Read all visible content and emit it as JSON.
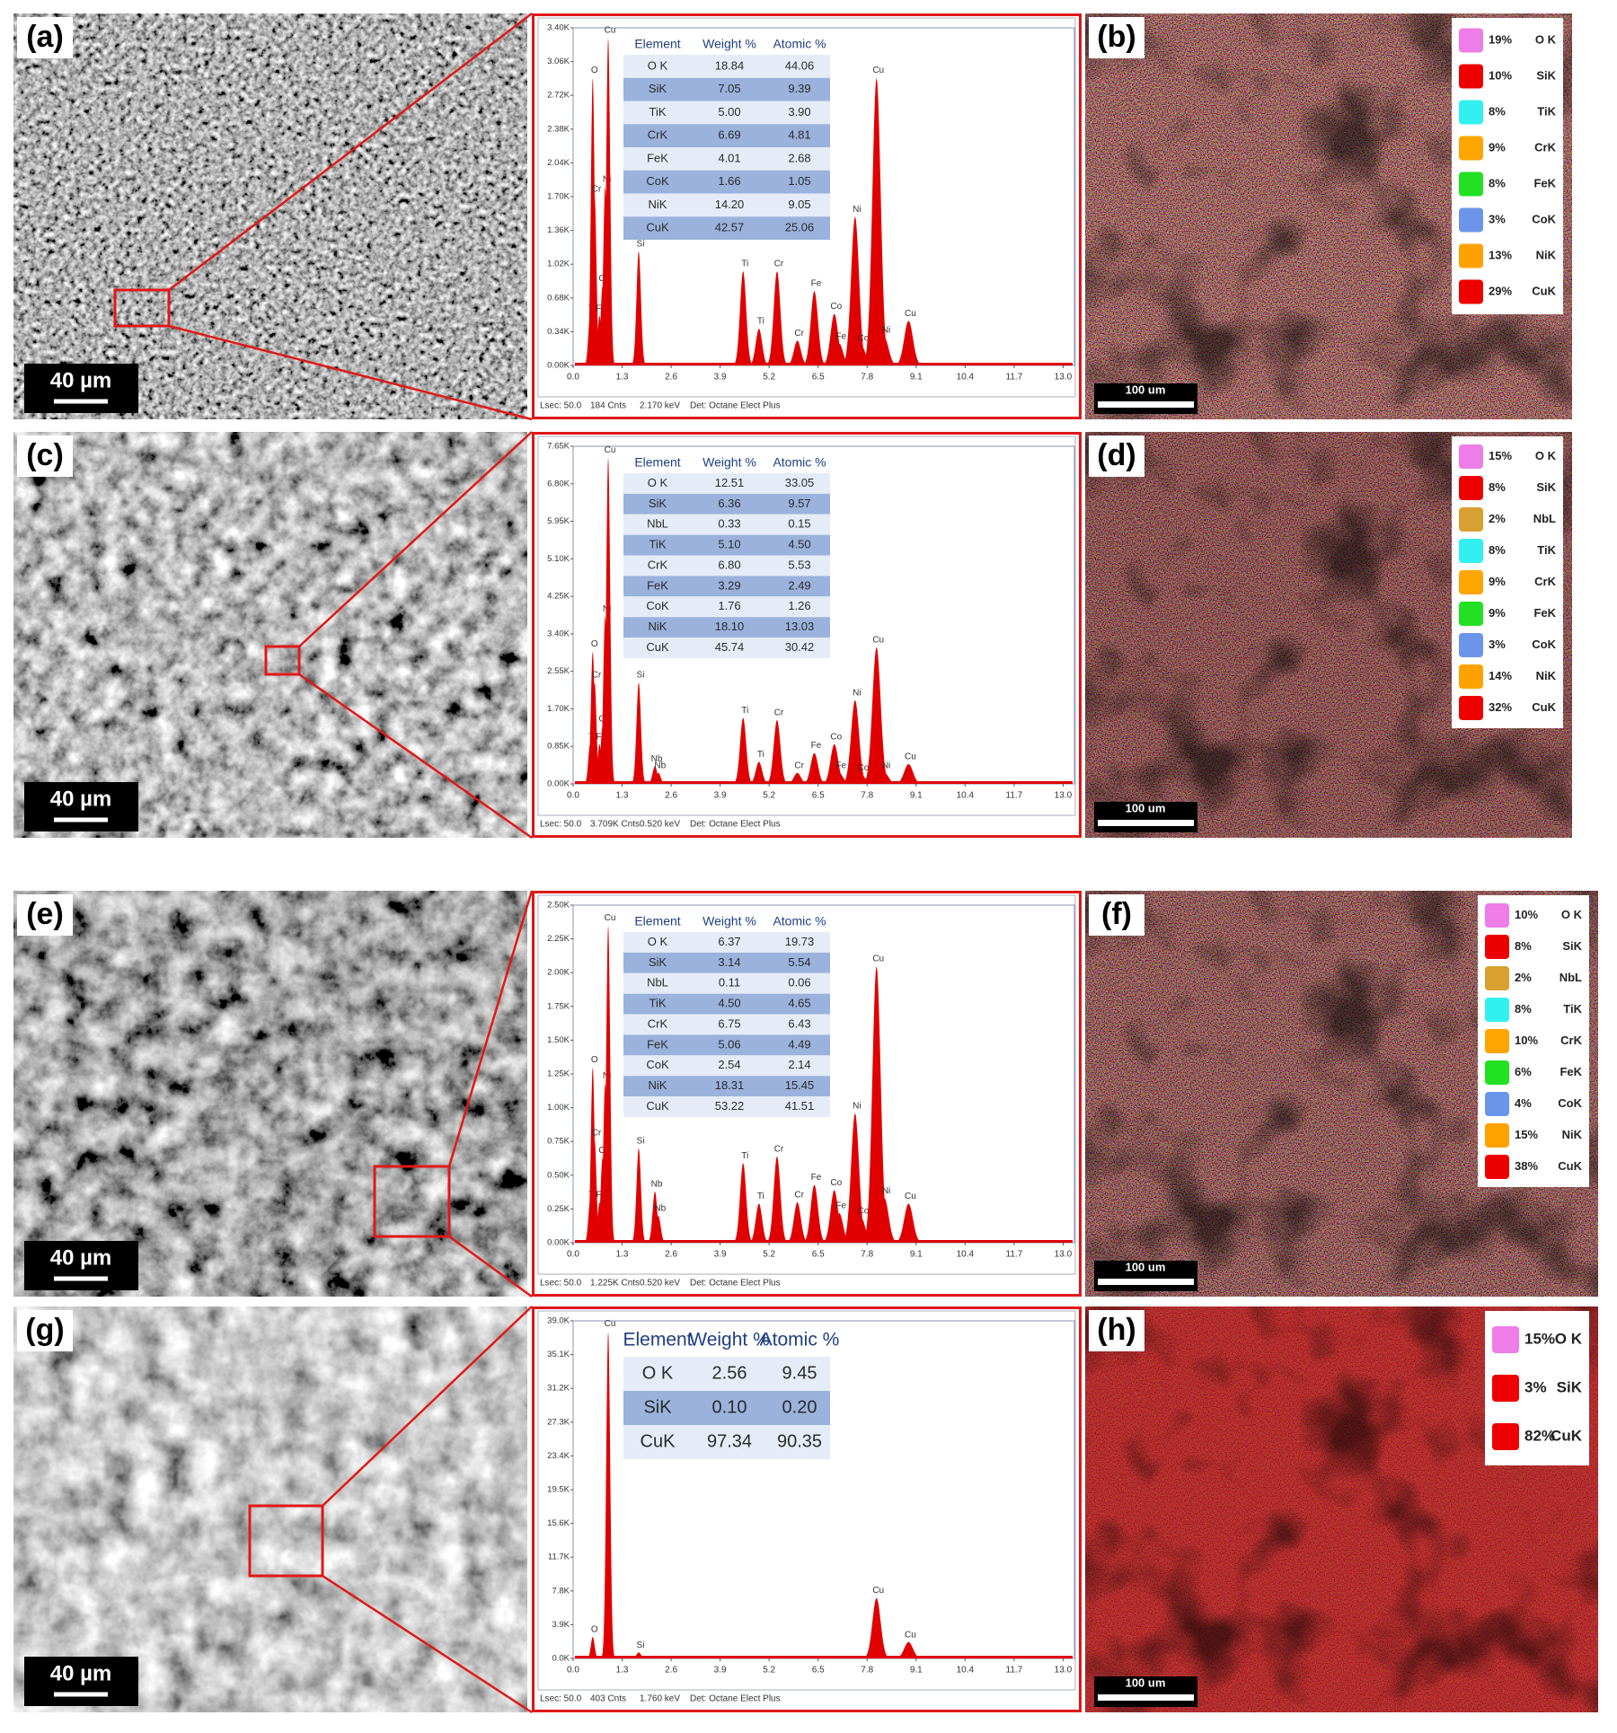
{
  "rows": [
    {
      "sem": {
        "label": "(a)",
        "scale_bar": "40 µm"
      },
      "map": {
        "label": "(b)",
        "scale_bar": "100 um",
        "legend": [
          {
            "share": "19%",
            "element": "O K",
            "color": "#ee7de8"
          },
          {
            "share": "10%",
            "element": "SiK",
            "color": "#ee0000"
          },
          {
            "share": "8%",
            "element": "TiK",
            "color": "#33f0f0"
          },
          {
            "share": "9%",
            "element": "CrK",
            "color": "#ffa500"
          },
          {
            "share": "8%",
            "element": "FeK",
            "color": "#22e022"
          },
          {
            "share": "3%",
            "element": "CoK",
            "color": "#6a95e8"
          },
          {
            "share": "13%",
            "element": "NiK",
            "color": "#ffa200"
          },
          {
            "share": "29%",
            "element": "CuK",
            "color": "#ee0000"
          }
        ]
      }
    },
    {
      "sem": {
        "label": "(c)",
        "scale_bar": "40 µm"
      },
      "map": {
        "label": "(d)",
        "scale_bar": "100 um",
        "legend": [
          {
            "share": "15%",
            "element": "O K",
            "color": "#ee7de8"
          },
          {
            "share": "8%",
            "element": "SiK",
            "color": "#ee0000"
          },
          {
            "share": "2%",
            "element": "NbL",
            "color": "#d8a030"
          },
          {
            "share": "8%",
            "element": "TiK",
            "color": "#33f0f0"
          },
          {
            "share": "9%",
            "element": "CrK",
            "color": "#ffa500"
          },
          {
            "share": "9%",
            "element": "FeK",
            "color": "#22e022"
          },
          {
            "share": "3%",
            "element": "CoK",
            "color": "#6a95e8"
          },
          {
            "share": "14%",
            "element": "NiK",
            "color": "#ffa200"
          },
          {
            "share": "32%",
            "element": "CuK",
            "color": "#ee0000"
          }
        ]
      }
    },
    {
      "sem": {
        "label": "(e)",
        "scale_bar": "40 µm"
      },
      "map": {
        "label": "(f)",
        "scale_bar": "100 um",
        "legend": [
          {
            "share": "10%",
            "element": "O K",
            "color": "#ee7de8"
          },
          {
            "share": "8%",
            "element": "SiK",
            "color": "#ee0000"
          },
          {
            "share": "2%",
            "element": "NbL",
            "color": "#d8a030"
          },
          {
            "share": "8%",
            "element": "TiK",
            "color": "#33f0f0"
          },
          {
            "share": "10%",
            "element": "CrK",
            "color": "#ffa500"
          },
          {
            "share": "6%",
            "element": "FeK",
            "color": "#22e022"
          },
          {
            "share": "4%",
            "element": "CoK",
            "color": "#6a95e8"
          },
          {
            "share": "15%",
            "element": "NiK",
            "color": "#ffa200"
          },
          {
            "share": "38%",
            "element": "CuK",
            "color": "#ee0000"
          }
        ]
      }
    },
    {
      "sem": {
        "label": "(g)",
        "scale_bar": "40 µm"
      },
      "map": {
        "label": "(h)",
        "scale_bar": "100 um",
        "legend": [
          {
            "share": "15%",
            "element": "O K",
            "color": "#ee7de8"
          },
          {
            "share": "3%",
            "element": "SiK",
            "color": "#ee0000"
          },
          {
            "share": "82%",
            "element": "CuK",
            "color": "#ee0000"
          }
        ]
      }
    }
  ],
  "chart_data": [
    {
      "type": "area",
      "color": "#e00000",
      "xlim": [
        0,
        13.3
      ],
      "xticks": [
        {
          "value": 0,
          "label": "0.0"
        },
        1.3,
        2.6,
        3.9,
        5.2,
        6.5,
        7.8,
        9.1,
        10.4,
        11.7,
        {
          "value": 13,
          "label": "13.0"
        }
      ],
      "ylim": [
        0,
        3400
      ],
      "yticks": [
        {
          "value": 0,
          "label": "0.00K"
        },
        {
          "value": 340,
          "label": "0.34K"
        },
        {
          "value": 680,
          "label": "0.68K"
        },
        {
          "value": 1020,
          "label": "1.02K"
        },
        {
          "value": 1360,
          "label": "1.36K"
        },
        {
          "value": 1700,
          "label": "1.70K"
        },
        {
          "value": 2040,
          "label": "2.04K"
        },
        {
          "value": 2380,
          "label": "2.38K"
        },
        {
          "value": 2720,
          "label": "2.72K"
        },
        {
          "value": 3060,
          "label": "3.06K"
        },
        {
          "value": 3400,
          "label": "3.40K"
        }
      ],
      "peaks": [
        {
          "label": "Ti",
          "energy": 0.45,
          "counts": 500
        },
        {
          "label": "O",
          "energy": 0.52,
          "counts": 2900
        },
        {
          "label": "Cr",
          "energy": 0.57,
          "counts": 1700
        },
        {
          "label": "Fe",
          "energy": 0.7,
          "counts": 500
        },
        {
          "label": "Co",
          "energy": 0.78,
          "counts": 800
        },
        {
          "label": "Ni",
          "energy": 0.85,
          "counts": 1800
        },
        {
          "label": "Cu",
          "energy": 0.93,
          "counts": 3300
        },
        {
          "label": "Si",
          "energy": 1.74,
          "counts": 1150
        },
        {
          "label": "Ti",
          "energy": 4.51,
          "counts": 950
        },
        {
          "label": "Ti",
          "energy": 4.93,
          "counts": 370
        },
        {
          "label": "Cr",
          "energy": 5.41,
          "counts": 950
        },
        {
          "label": "Cr",
          "energy": 5.95,
          "counts": 250
        },
        {
          "label": "Fe",
          "energy": 6.4,
          "counts": 750
        },
        {
          "label": "Co",
          "energy": 6.93,
          "counts": 520
        },
        {
          "label": "Fe",
          "energy": 7.06,
          "counts": 220
        },
        {
          "label": "Ni",
          "energy": 7.48,
          "counts": 1500
        },
        {
          "label": "Co",
          "energy": 7.65,
          "counts": 200
        },
        {
          "label": "Cu",
          "energy": 8.05,
          "counts": 2900
        },
        {
          "label": "Ni",
          "energy": 8.26,
          "counts": 280
        },
        {
          "label": "Cu",
          "energy": 8.9,
          "counts": 450
        }
      ],
      "table": {
        "columns": [
          "Element",
          "Weight %",
          "Atomic %"
        ],
        "rows": [
          [
            "O K",
            "18.84",
            "44.06"
          ],
          [
            "SiK",
            "7.05",
            "9.39"
          ],
          [
            "TiK",
            "5.00",
            "3.90"
          ],
          [
            "CrK",
            "6.69",
            "4.81"
          ],
          [
            "FeK",
            "4.01",
            "2.68"
          ],
          [
            "CoK",
            "1.66",
            "1.05"
          ],
          [
            "NiK",
            "14.20",
            "9.05"
          ],
          [
            "CuK",
            "42.57",
            "25.06"
          ]
        ]
      },
      "footer": [
        "Lsec: 50.0",
        "184 Cnts",
        "2.170 keV",
        "Det: Octane Elect Plus"
      ]
    },
    {
      "type": "area",
      "color": "#e00000",
      "xlim": [
        0,
        13.3
      ],
      "xticks": [
        {
          "value": 0,
          "label": "0.0"
        },
        1.3,
        2.6,
        3.9,
        5.2,
        6.5,
        7.8,
        9.1,
        10.4,
        11.7,
        {
          "value": 13,
          "label": "13.0"
        }
      ],
      "ylim": [
        0,
        7650
      ],
      "yticks": [
        {
          "value": 0,
          "label": "0.00K"
        },
        {
          "value": 850,
          "label": "0.85K"
        },
        {
          "value": 1700,
          "label": "1.70K"
        },
        {
          "value": 2550,
          "label": "2.55K"
        },
        {
          "value": 3400,
          "label": "3.40K"
        },
        {
          "value": 4250,
          "label": "4.25K"
        },
        {
          "value": 5100,
          "label": "5.10K"
        },
        {
          "value": 5950,
          "label": "5.95K"
        },
        {
          "value": 6800,
          "label": "6.80K"
        },
        {
          "value": 7650,
          "label": "7.65K"
        }
      ],
      "peaks": [
        {
          "label": "Ti",
          "energy": 0.45,
          "counts": 900
        },
        {
          "label": "O",
          "energy": 0.52,
          "counts": 3000
        },
        {
          "label": "Cr",
          "energy": 0.57,
          "counts": 2300
        },
        {
          "label": "Fe",
          "energy": 0.7,
          "counts": 900
        },
        {
          "label": "Co",
          "energy": 0.78,
          "counts": 1300
        },
        {
          "label": "Ni",
          "energy": 0.85,
          "counts": 3800
        },
        {
          "label": "Cu",
          "energy": 0.93,
          "counts": 7400
        },
        {
          "label": "Si",
          "energy": 1.74,
          "counts": 2300
        },
        {
          "label": "Nb",
          "energy": 2.17,
          "counts": 400
        },
        {
          "label": "Nb",
          "energy": 2.26,
          "counts": 250
        },
        {
          "label": "Ti",
          "energy": 4.51,
          "counts": 1500
        },
        {
          "label": "Ti",
          "energy": 4.93,
          "counts": 500
        },
        {
          "label": "Cr",
          "energy": 5.41,
          "counts": 1450
        },
        {
          "label": "Cr",
          "energy": 5.95,
          "counts": 250
        },
        {
          "label": "Fe",
          "energy": 6.4,
          "counts": 700
        },
        {
          "label": "Co",
          "energy": 6.93,
          "counts": 900
        },
        {
          "label": "Fe",
          "energy": 7.06,
          "counts": 250
        },
        {
          "label": "Ni",
          "energy": 7.48,
          "counts": 1900
        },
        {
          "label": "Co",
          "energy": 7.65,
          "counts": 200
        },
        {
          "label": "Cu",
          "energy": 8.05,
          "counts": 3100
        },
        {
          "label": "Ni",
          "energy": 8.26,
          "counts": 250
        },
        {
          "label": "Cu",
          "energy": 8.9,
          "counts": 450
        }
      ],
      "table": {
        "columns": [
          "Element",
          "Weight %",
          "Atomic %"
        ],
        "rows": [
          [
            "O K",
            "12.51",
            "33.05"
          ],
          [
            "SiK",
            "6.36",
            "9.57"
          ],
          [
            "NbL",
            "0.33",
            "0.15"
          ],
          [
            "TiK",
            "5.10",
            "4.50"
          ],
          [
            "CrK",
            "6.80",
            "5.53"
          ],
          [
            "FeK",
            "3.29",
            "2.49"
          ],
          [
            "CoK",
            "1.76",
            "1.26"
          ],
          [
            "NiK",
            "18.10",
            "13.03"
          ],
          [
            "CuK",
            "45.74",
            "30.42"
          ]
        ]
      },
      "footer": [
        "Lsec: 50.0",
        "3.709K Cnts",
        "0.520 keV",
        "Det: Octane Elect Plus"
      ]
    },
    {
      "type": "area",
      "color": "#e00000",
      "xlim": [
        0,
        13.3
      ],
      "xticks": [
        {
          "value": 0,
          "label": "0.0"
        },
        1.3,
        2.6,
        3.9,
        5.2,
        6.5,
        7.8,
        9.1,
        10.4,
        11.7,
        {
          "value": 13,
          "label": "13.0"
        }
      ],
      "ylim": [
        0,
        2500
      ],
      "yticks": [
        {
          "value": 0,
          "label": "0.00K"
        },
        {
          "value": 250,
          "label": "0.25K"
        },
        {
          "value": 500,
          "label": "0.50K"
        },
        {
          "value": 750,
          "label": "0.75K"
        },
        {
          "value": 1000,
          "label": "1.00K"
        },
        {
          "value": 1250,
          "label": "1.25K"
        },
        {
          "value": 1500,
          "label": "1.50K"
        },
        {
          "value": 1750,
          "label": "1.75K"
        },
        {
          "value": 2000,
          "label": "2.00K"
        },
        {
          "value": 2250,
          "label": "2.25K"
        },
        {
          "value": 2500,
          "label": "2.50K"
        }
      ],
      "peaks": [
        {
          "label": "Ti",
          "energy": 0.45,
          "counts": 300
        },
        {
          "label": "O",
          "energy": 0.52,
          "counts": 1300
        },
        {
          "label": "Cr",
          "energy": 0.57,
          "counts": 760
        },
        {
          "label": "Fe",
          "energy": 0.7,
          "counts": 300
        },
        {
          "label": "Co",
          "energy": 0.78,
          "counts": 630
        },
        {
          "label": "Ni",
          "energy": 0.85,
          "counts": 1180
        },
        {
          "label": "Cu",
          "energy": 0.93,
          "counts": 2350
        },
        {
          "label": "Si",
          "energy": 1.74,
          "counts": 700
        },
        {
          "label": "Nb",
          "energy": 2.17,
          "counts": 380
        },
        {
          "label": "Nb",
          "energy": 2.26,
          "counts": 200
        },
        {
          "label": "Ti",
          "energy": 4.51,
          "counts": 590
        },
        {
          "label": "Ti",
          "energy": 4.93,
          "counts": 290
        },
        {
          "label": "Cr",
          "energy": 5.41,
          "counts": 640
        },
        {
          "label": "Cr",
          "energy": 5.95,
          "counts": 300
        },
        {
          "label": "Fe",
          "energy": 6.4,
          "counts": 430
        },
        {
          "label": "Co",
          "energy": 6.93,
          "counts": 390
        },
        {
          "label": "Fe",
          "energy": 7.06,
          "counts": 220
        },
        {
          "label": "Ni",
          "energy": 7.48,
          "counts": 960
        },
        {
          "label": "Co",
          "energy": 7.65,
          "counts": 180
        },
        {
          "label": "Cu",
          "energy": 8.05,
          "counts": 2050
        },
        {
          "label": "Ni",
          "energy": 8.26,
          "counts": 330
        },
        {
          "label": "Cu",
          "energy": 8.9,
          "counts": 290
        }
      ],
      "table": {
        "columns": [
          "Element",
          "Weight %",
          "Atomic %"
        ],
        "rows": [
          [
            "O K",
            "6.37",
            "19.73"
          ],
          [
            "SiK",
            "3.14",
            "5.54"
          ],
          [
            "NbL",
            "0.11",
            "0.06"
          ],
          [
            "TiK",
            "4.50",
            "4.65"
          ],
          [
            "CrK",
            "6.75",
            "6.43"
          ],
          [
            "FeK",
            "5.06",
            "4.49"
          ],
          [
            "CoK",
            "2.54",
            "2.14"
          ],
          [
            "NiK",
            "18.31",
            "15.45"
          ],
          [
            "CuK",
            "53.22",
            "41.51"
          ]
        ]
      },
      "footer": [
        "Lsec: 50.0",
        "1.225K Cnts",
        "0.520 keV",
        "Det: Octane Elect Plus"
      ]
    },
    {
      "type": "area",
      "color": "#e00000",
      "xlim": [
        0,
        13.3
      ],
      "xticks": [
        {
          "value": 0,
          "label": "0.0"
        },
        1.3,
        2.6,
        3.9,
        5.2,
        6.5,
        7.8,
        9.1,
        10.4,
        11.7,
        {
          "value": 13,
          "label": "13.0"
        }
      ],
      "ylim": [
        0,
        39000
      ],
      "yticks": [
        {
          "value": 0,
          "label": "0.0K"
        },
        {
          "value": 3900,
          "label": "3.9K"
        },
        {
          "value": 7800,
          "label": "7.8K"
        },
        {
          "value": 11700,
          "label": "11.7K"
        },
        {
          "value": 15600,
          "label": "15.6K"
        },
        {
          "value": 19500,
          "label": "19.5K"
        },
        {
          "value": 23400,
          "label": "23.4K"
        },
        {
          "value": 27300,
          "label": "27.3K"
        },
        {
          "value": 31200,
          "label": "31.2K"
        },
        {
          "value": 35100,
          "label": "35.1K"
        },
        {
          "value": 39000,
          "label": "39.0K"
        }
      ],
      "peaks": [
        {
          "label": "O",
          "energy": 0.52,
          "counts": 2500
        },
        {
          "label": "Cu",
          "energy": 0.93,
          "counts": 37800
        },
        {
          "label": "Si",
          "energy": 1.74,
          "counts": 700
        },
        {
          "label": "Cu",
          "energy": 8.05,
          "counts": 7000
        },
        {
          "label": "Cu",
          "energy": 8.9,
          "counts": 1900
        }
      ],
      "table": {
        "columns": [
          "Element",
          "Weight %",
          "Atomic %"
        ],
        "rows": [
          [
            "O K",
            "2.56",
            "9.45"
          ],
          [
            "SiK",
            "0.10",
            "0.20"
          ],
          [
            "CuK",
            "97.34",
            "90.35"
          ]
        ]
      },
      "footer": [
        "Lsec: 50.0",
        "403 Cnts",
        "1.760 keV",
        "Det: Octane Elect Plus"
      ]
    }
  ]
}
